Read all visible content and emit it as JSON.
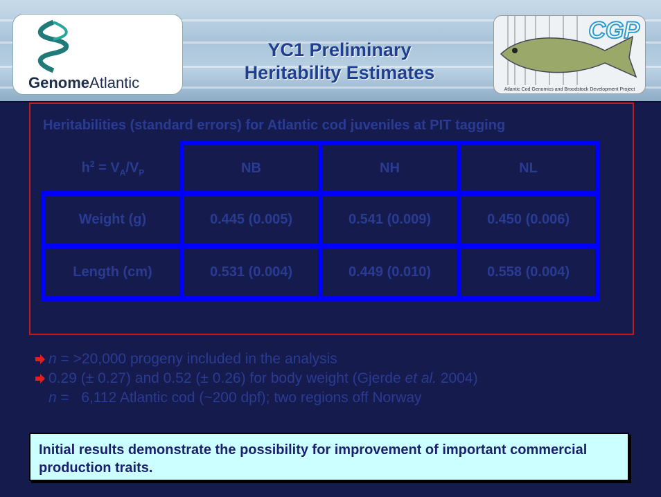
{
  "header": {
    "logo_left": {
      "bold": "Genome",
      "regular": "Atlantic"
    },
    "title": [
      "YC1 Preliminary",
      "Heritability Estimates"
    ],
    "logo_right": {
      "name": "CGP",
      "caption": "Atlantic Cod Genomics and Broodstock Development Project"
    }
  },
  "table": {
    "title": "Heritabilities (standard errors) for Atlantic cod juveniles at PIT tagging",
    "formula": [
      "h",
      "2",
      " = V",
      "A",
      "/V",
      "P"
    ],
    "columns": [
      "NB",
      "NH",
      "NL"
    ],
    "rows": [
      [
        "Weight (g)",
        "0.445 (0.005)",
        "0.541 (0.009)",
        "0.450 (0.006)"
      ],
      [
        "Length (cm)",
        "0.531 (0.004)",
        "0.449 (0.010)",
        "0.558 (0.004)"
      ]
    ]
  },
  "bullets": [
    [
      "n",
      " = >20,000 progeny included in the analysis"
    ],
    [
      "0.29 (± 0.27) and 0.52 (± 0.26) for body weight (Gjerde ",
      "et al.",
      " 2004)"
    ],
    [
      "n",
      " =   6,112 Atlantic cod (~200 dpf); two regions off Norway"
    ]
  ],
  "conclusion": "Initial results demonstrate the possibility for improvement of important commercial production traits."
}
